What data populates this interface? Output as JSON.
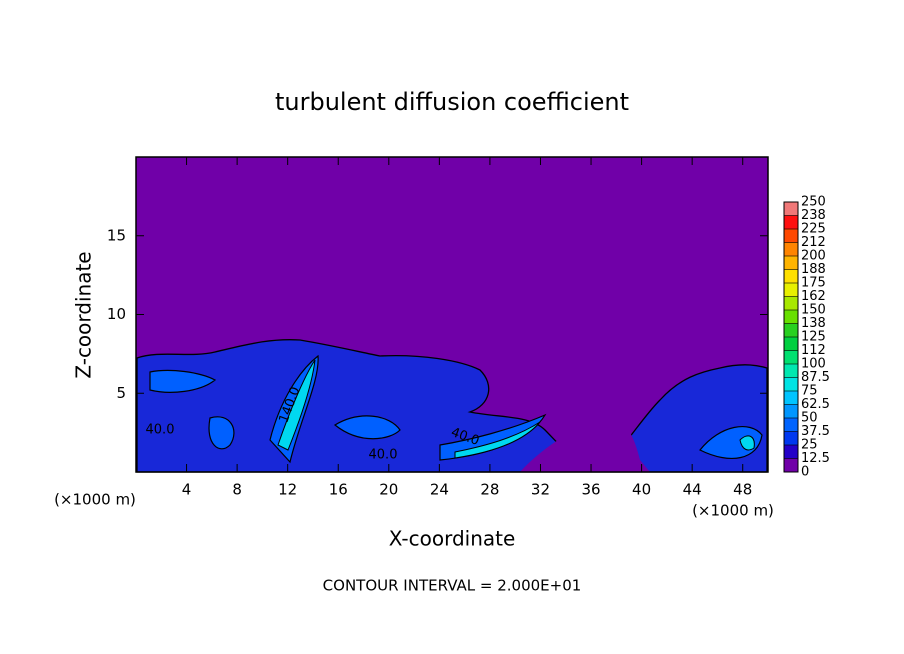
{
  "chart_data": {
    "type": "contour",
    "title": "turbulent diffusion coefficient",
    "x_label": "X-coordinate",
    "y_label": "Z-coordinate",
    "x_unit_label": "(×1000 m)",
    "footer": "CONTOUR INTERVAL = 2.000E+01",
    "xlim": [
      0,
      50
    ],
    "xticks": [
      4,
      8,
      12,
      16,
      20,
      24,
      28,
      32,
      36,
      40,
      44,
      48
    ],
    "ylim": [
      0,
      20
    ],
    "yticks": [
      5,
      10,
      15
    ],
    "background_color": "#7000a8",
    "contour_labels": [
      "40.0",
      "140.0",
      "40.0",
      "40.0"
    ],
    "colorbar": {
      "ticks": [
        0,
        12.5,
        25,
        37.5,
        50,
        62.5,
        75,
        87.5,
        100,
        {
          "value": 112.5,
          "label": "112"
        },
        125,
        {
          "value": 137.5,
          "label": "138"
        },
        150,
        {
          "value": 162.5,
          "label": "162"
        },
        175,
        {
          "value": 187.5,
          "label": "188"
        },
        200,
        {
          "value": 212.5,
          "label": "212"
        },
        225,
        {
          "value": 237.5,
          "label": "238"
        },
        250
      ],
      "colors": [
        "#7000a8",
        "#2400c8",
        "#0038f0",
        "#0064ff",
        "#0096ff",
        "#00c4ff",
        "#00e4e4",
        "#00e8b0",
        "#00e070",
        "#00d040",
        "#28d020",
        "#68e000",
        "#a8e800",
        "#e8f000",
        "#ffe000",
        "#ffb400",
        "#ff8400",
        "#ff4800",
        "#ff1010",
        "#f07878"
      ]
    }
  }
}
